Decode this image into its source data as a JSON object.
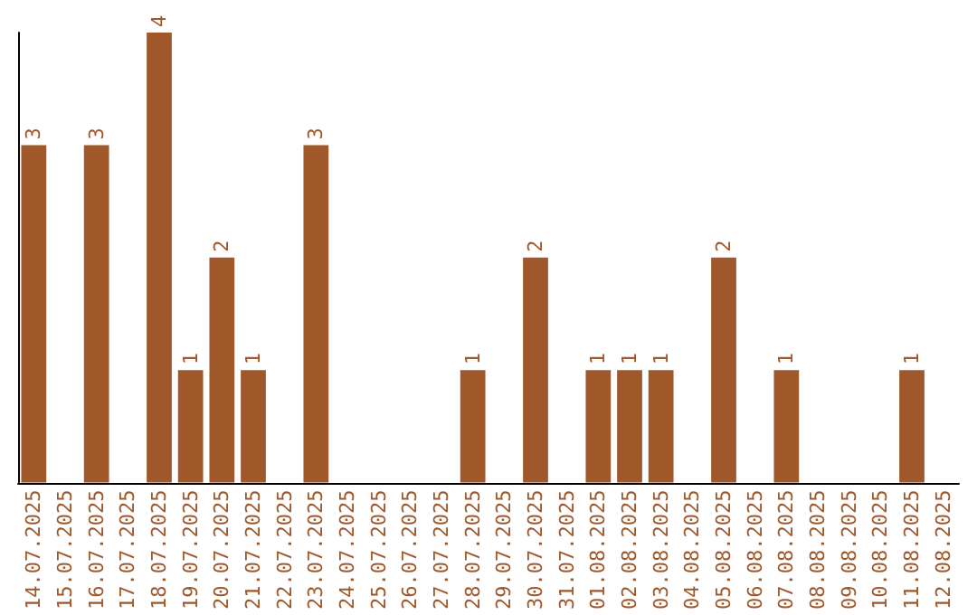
{
  "chart_data": {
    "type": "bar",
    "categories": [
      "14.07.2025",
      "15.07.2025",
      "16.07.2025",
      "17.07.2025",
      "18.07.2025",
      "19.07.2025",
      "20.07.2025",
      "21.07.2025",
      "22.07.2025",
      "23.07.2025",
      "24.07.2025",
      "25.07.2025",
      "26.07.2025",
      "27.07.2025",
      "28.07.2025",
      "29.07.2025",
      "30.07.2025",
      "31.07.2025",
      "01.08.2025",
      "02.08.2025",
      "03.08.2025",
      "04.08.2025",
      "05.08.2025",
      "06.08.2025",
      "07.08.2025",
      "08.08.2025",
      "09.08.2025",
      "10.08.2025",
      "11.08.2025",
      "12.08.2025"
    ],
    "values": [
      3,
      0,
      3,
      0,
      4,
      1,
      2,
      1,
      0,
      3,
      0,
      0,
      0,
      0,
      1,
      0,
      2,
      0,
      1,
      1,
      1,
      0,
      2,
      0,
      1,
      0,
      0,
      0,
      1,
      0
    ],
    "value_labels": [
      "3",
      null,
      "3",
      null,
      "4",
      "1",
      "2",
      "1",
      null,
      "3",
      null,
      null,
      null,
      null,
      "1",
      null,
      "2",
      null,
      "1",
      "1",
      "1",
      null,
      "2",
      null,
      "1",
      null,
      null,
      null,
      "1",
      null
    ],
    "color": "#a0582a",
    "tick_labels": "x"
  }
}
